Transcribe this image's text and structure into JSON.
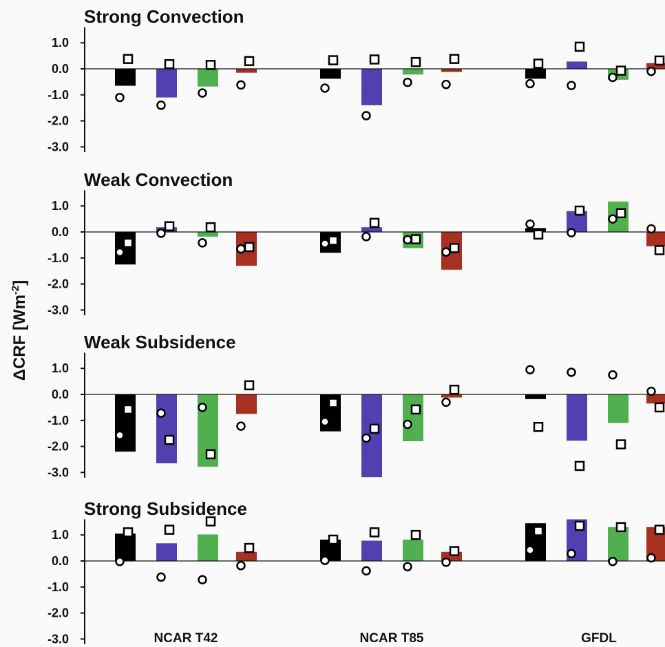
{
  "chart_data": {
    "type": "bar",
    "ylabel": "ΔCRF [Wm",
    "ylabel_superscript": "-2",
    "ylabel_close": "]",
    "group_labels": [
      "NCAR T42",
      "NCAR T85",
      "GFDL"
    ],
    "yticks": [
      "1.0",
      "0.0",
      "-1.0",
      "-2.0",
      "-3.0"
    ],
    "ytick_values": [
      1.0,
      0.0,
      -1.0,
      -2.0,
      -3.0
    ],
    "ylim": [
      -3.2,
      1.6
    ],
    "colors": [
      "#000000",
      "#5040b0",
      "#50b050",
      "#a83020"
    ],
    "markers": {
      "circle": "open circle",
      "square": "open square"
    },
    "panels": [
      {
        "title": "Strong Convection",
        "groups": [
          {
            "bars": [
              -0.65,
              -1.1,
              -0.68,
              -0.15
            ],
            "circles": [
              -1.1,
              -1.4,
              -0.93,
              -0.62
            ],
            "squares": [
              0.38,
              0.18,
              0.15,
              0.3
            ]
          },
          {
            "bars": [
              -0.38,
              -1.4,
              -0.22,
              -0.12
            ],
            "circles": [
              -0.74,
              -1.8,
              -0.52,
              -0.6
            ],
            "squares": [
              0.33,
              0.36,
              0.26,
              0.38
            ]
          },
          {
            "bars": [
              -0.38,
              0.28,
              -0.42,
              0.22
            ],
            "circles": [
              -0.57,
              -0.64,
              -0.33,
              -0.1
            ],
            "squares": [
              0.2,
              0.85,
              -0.07,
              0.32
            ]
          }
        ]
      },
      {
        "title": "Weak Convection",
        "groups": [
          {
            "bars": [
              -1.25,
              0.18,
              -0.18,
              -1.3
            ],
            "circles": [
              -0.78,
              -0.05,
              -0.42,
              -0.65
            ],
            "squares": [
              -0.42,
              0.22,
              0.18,
              -0.58
            ]
          },
          {
            "bars": [
              -0.8,
              0.18,
              -0.62,
              -1.45
            ],
            "circles": [
              -0.45,
              -0.18,
              -0.3,
              -0.77
            ],
            "squares": [
              -0.33,
              0.35,
              -0.28,
              -0.62
            ]
          },
          {
            "bars": [
              0.15,
              0.8,
              1.17,
              -0.55
            ],
            "circles": [
              0.3,
              -0.03,
              0.5,
              0.12
            ],
            "squares": [
              -0.1,
              0.82,
              0.72,
              -0.7
            ]
          }
        ]
      },
      {
        "title": "Weak Subsidence",
        "groups": [
          {
            "bars": [
              -2.2,
              -2.65,
              -2.78,
              -0.75
            ],
            "circles": [
              -1.57,
              -0.72,
              -0.5,
              -1.22
            ],
            "squares": [
              -0.58,
              -1.75,
              -2.3,
              0.35
            ]
          },
          {
            "bars": [
              -1.42,
              -3.18,
              -1.8,
              -0.12
            ],
            "circles": [
              -1.05,
              -1.68,
              -1.15,
              -0.3
            ],
            "squares": [
              -0.33,
              -1.32,
              -0.58,
              0.18
            ]
          },
          {
            "bars": [
              -0.18,
              -1.78,
              -1.1,
              -0.35
            ],
            "circles": [
              0.95,
              0.85,
              0.75,
              0.12
            ],
            "squares": [
              -1.25,
              -2.75,
              -1.92,
              -0.5
            ]
          }
        ]
      },
      {
        "title": "Strong Subsidence",
        "groups": [
          {
            "bars": [
              1.05,
              0.68,
              1.02,
              0.35
            ],
            "circles": [
              -0.02,
              -0.62,
              -0.72,
              -0.18
            ],
            "squares": [
              1.1,
              1.2,
              1.52,
              0.5
            ]
          },
          {
            "bars": [
              0.82,
              0.78,
              0.82,
              0.35
            ],
            "circles": [
              0.02,
              -0.38,
              -0.22,
              -0.05
            ],
            "squares": [
              0.82,
              1.1,
              1.0,
              0.38
            ]
          },
          {
            "bars": [
              1.45,
              1.6,
              1.3,
              1.3
            ],
            "circles": [
              0.42,
              0.28,
              -0.02,
              0.12
            ],
            "squares": [
              1.15,
              1.35,
              1.3,
              1.2
            ]
          }
        ]
      }
    ]
  }
}
